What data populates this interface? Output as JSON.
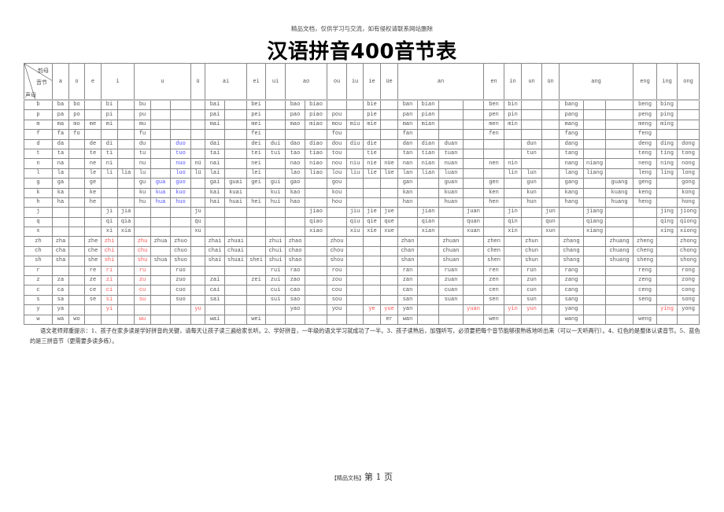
{
  "notice": "精品文档，仅供学习与交流，如有侵权请联系网站删除",
  "title": "汉语拼音400音节表",
  "corner": {
    "finals": "韵母",
    "syllable": "音节",
    "initials": "声母"
  },
  "colors": {
    "whole_reading": "#ff5555",
    "three_spelling": "#5555ff"
  },
  "header_groups": [
    {
      "label": "a",
      "span": 1
    },
    {
      "label": "o",
      "span": 1
    },
    {
      "label": "e",
      "span": 1
    },
    {
      "label": "i",
      "span": 2
    },
    {
      "label": "u",
      "span": 3
    },
    {
      "label": "ü",
      "span": 1
    },
    {
      "label": "ai",
      "span": 2
    },
    {
      "label": "ei",
      "span": 1
    },
    {
      "label": "ui",
      "span": 1
    },
    {
      "label": "ao",
      "span": 2
    },
    {
      "label": "ou",
      "span": 1
    },
    {
      "label": "iu",
      "span": 1
    },
    {
      "label": "ie",
      "span": 1
    },
    {
      "label": "üe",
      "span": 1
    },
    {
      "label": "an",
      "span": 4
    },
    {
      "label": "en",
      "span": 1
    },
    {
      "label": "in",
      "span": 1
    },
    {
      "label": "un",
      "span": 1
    },
    {
      "label": "ün",
      "span": 1
    },
    {
      "label": "ang",
      "span": 3
    },
    {
      "label": "eng",
      "span": 1
    },
    {
      "label": "ing",
      "span": 1
    },
    {
      "label": "ong",
      "span": 1
    }
  ],
  "rows": [
    {
      "initial": "b",
      "cells": [
        "ba",
        "bo",
        "",
        "bi",
        "",
        "bu",
        "",
        "",
        "",
        "bai",
        "",
        "bei",
        "",
        "bao",
        "biao",
        "",
        "",
        "bie",
        "",
        "ban",
        "bian",
        "",
        "",
        "ben",
        "bin",
        "",
        "",
        "bang",
        "",
        "",
        "beng",
        "bing",
        ""
      ]
    },
    {
      "initial": "p",
      "cells": [
        "pa",
        "po",
        "",
        "pi",
        "",
        "pu",
        "",
        "",
        "",
        "pai",
        "",
        "pei",
        "",
        "pao",
        "piao",
        "pou",
        "",
        "pie",
        "",
        "pan",
        "pian",
        "",
        "",
        "pen",
        "pin",
        "",
        "",
        "pang",
        "",
        "",
        "peng",
        "ping",
        ""
      ]
    },
    {
      "initial": "m",
      "cells": [
        "ma",
        "mo",
        "me",
        "mi",
        "",
        "mu",
        "",
        "",
        "",
        "mai",
        "",
        "mei",
        "",
        "mao",
        "miao",
        "mou",
        "miu",
        "mie",
        "",
        "man",
        "mian",
        "",
        "",
        "men",
        "min",
        "",
        "",
        "mang",
        "",
        "",
        "meng",
        "ming",
        ""
      ]
    },
    {
      "initial": "f",
      "cells": [
        "fa",
        "fo",
        "",
        "",
        "",
        "fu",
        "",
        "",
        "",
        "",
        "",
        "fei",
        "",
        "",
        "",
        "fou",
        "",
        "",
        "",
        "fan",
        "",
        "",
        "",
        "fen",
        "",
        "",
        "",
        "fang",
        "",
        "",
        "feng",
        "",
        ""
      ]
    },
    {
      "initial": "d",
      "cells": [
        "da",
        "",
        "de",
        "di",
        "",
        "du",
        "",
        "duo",
        "",
        "dai",
        "",
        "dei",
        "dui",
        "dao",
        "diao",
        "dou",
        "diu",
        "die",
        "",
        "dan",
        "dian",
        "duan",
        "",
        "",
        "",
        "dun",
        "",
        "dang",
        "",
        "",
        "deng",
        "ding",
        "dong"
      ]
    },
    {
      "initial": "t",
      "cells": [
        "ta",
        "",
        "te",
        "ti",
        "",
        "tu",
        "",
        "tuo",
        "",
        "tai",
        "",
        "tei",
        "tui",
        "tao",
        "tiao",
        "tou",
        "",
        "tie",
        "",
        "tan",
        "tian",
        "tuan",
        "",
        "",
        "",
        "tun",
        "",
        "tang",
        "",
        "",
        "teng",
        "ting",
        "tong"
      ]
    },
    {
      "initial": "n",
      "cells": [
        "na",
        "",
        "ne",
        "ni",
        "",
        "nu",
        "",
        "nuo",
        "nü",
        "nai",
        "",
        "nei",
        "",
        "nao",
        "niao",
        "nou",
        "niu",
        "nie",
        "nüe",
        "nan",
        "nian",
        "nuan",
        "",
        "nen",
        "nin",
        "",
        "",
        "nang",
        "niang",
        "",
        "neng",
        "ning",
        "nong"
      ]
    },
    {
      "initial": "l",
      "cells": [
        "la",
        "",
        "le",
        "li",
        "lia",
        "lu",
        "",
        "luo",
        "lü",
        "lai",
        "",
        "lei",
        "",
        "lao",
        "liao",
        "lou",
        "liu",
        "lie",
        "lüe",
        "lan",
        "lian",
        "luan",
        "",
        "",
        "lin",
        "lun",
        "",
        "lang",
        "liang",
        "",
        "leng",
        "ling",
        "long"
      ]
    },
    {
      "initial": "g",
      "cells": [
        "ga",
        "",
        "ge",
        "",
        "",
        "gu",
        "gua",
        "guo",
        "",
        "gai",
        "guai",
        "gei",
        "gui",
        "gao",
        "",
        "gou",
        "",
        "",
        "",
        "gan",
        "",
        "guan",
        "",
        "gen",
        "",
        "gun",
        "",
        "gang",
        "",
        "guang",
        "geng",
        "",
        "gong"
      ]
    },
    {
      "initial": "k",
      "cells": [
        "ka",
        "",
        "ke",
        "",
        "",
        "ku",
        "kua",
        "kuo",
        "",
        "kai",
        "kuai",
        "",
        "kui",
        "kao",
        "",
        "kou",
        "",
        "",
        "",
        "kan",
        "",
        "kuan",
        "",
        "ken",
        "",
        "kun",
        "",
        "kang",
        "",
        "kuang",
        "keng",
        "",
        "kong"
      ]
    },
    {
      "initial": "h",
      "cells": [
        "ha",
        "",
        "he",
        "",
        "",
        "hu",
        "hua",
        "huo",
        "",
        "hai",
        "huai",
        "hei",
        "hui",
        "hao",
        "",
        "hou",
        "",
        "",
        "",
        "han",
        "",
        "huan",
        "",
        "hen",
        "",
        "hun",
        "",
        "hang",
        "",
        "huang",
        "heng",
        "",
        "hong"
      ]
    },
    {
      "initial": "j",
      "cells": [
        "",
        "",
        "",
        "ji",
        "jia",
        "",
        "",
        "",
        "ju",
        "",
        "",
        "",
        "",
        "",
        "jiao",
        "",
        "jiu",
        "jie",
        "jue",
        "",
        "jian",
        "",
        "juan",
        "",
        "jin",
        "",
        "jun",
        "",
        "jiang",
        "",
        "",
        "jing",
        "jiong"
      ]
    },
    {
      "initial": "q",
      "cells": [
        "",
        "",
        "",
        "qi",
        "qia",
        "",
        "",
        "",
        "qu",
        "",
        "",
        "",
        "",
        "",
        "qiao",
        "",
        "qiu",
        "qie",
        "que",
        "",
        "qian",
        "",
        "quan",
        "",
        "qin",
        "",
        "qun",
        "",
        "qiang",
        "",
        "",
        "qing",
        "qiong"
      ]
    },
    {
      "initial": "x",
      "cells": [
        "",
        "",
        "",
        "xi",
        "xia",
        "",
        "",
        "",
        "xu",
        "",
        "",
        "",
        "",
        "",
        "xiao",
        "",
        "xiu",
        "xie",
        "xue",
        "",
        "xian",
        "",
        "xuan",
        "",
        "xin",
        "",
        "xun",
        "",
        "xiang",
        "",
        "",
        "xing",
        "xiong"
      ]
    },
    {
      "initial": "zh",
      "cells": [
        "zha",
        "",
        "zhe",
        "zhi",
        "",
        "zhu",
        "zhua",
        "zhuo",
        "",
        "zhai",
        "zhuai",
        "",
        "zhui",
        "zhao",
        "",
        "zhou",
        "",
        "",
        "",
        "zhan",
        "",
        "zhuan",
        "",
        "zhen",
        "",
        "zhun",
        "",
        "zhang",
        "",
        "zhuang",
        "zheng",
        "",
        "zhong"
      ]
    },
    {
      "initial": "ch",
      "cells": [
        "cha",
        "",
        "che",
        "chi",
        "",
        "chu",
        "",
        "chuo",
        "",
        "chai",
        "chuai",
        "",
        "chui",
        "chao",
        "",
        "chou",
        "",
        "",
        "",
        "chan",
        "",
        "chuan",
        "",
        "chen",
        "",
        "chun",
        "",
        "chang",
        "",
        "chuang",
        "cheng",
        "",
        "chong"
      ]
    },
    {
      "initial": "sh",
      "cells": [
        "sha",
        "",
        "she",
        "shi",
        "",
        "shu",
        "shua",
        "shuo",
        "",
        "shai",
        "shuai",
        "shei",
        "shui",
        "shao",
        "",
        "shou",
        "",
        "",
        "",
        "shan",
        "",
        "shuan",
        "",
        "shen",
        "",
        "shun",
        "",
        "shang",
        "",
        "shuang",
        "sheng",
        "",
        "shong"
      ]
    },
    {
      "initial": "r",
      "cells": [
        "",
        "",
        "re",
        "ri",
        "",
        "ru",
        "",
        "ruo",
        "",
        "",
        "",
        "",
        "rui",
        "rao",
        "",
        "rou",
        "",
        "",
        "",
        "ran",
        "",
        "ruan",
        "",
        "ren",
        "",
        "run",
        "",
        "rang",
        "",
        "",
        "reng",
        "",
        "rong"
      ]
    },
    {
      "initial": "z",
      "cells": [
        "za",
        "",
        "ze",
        "zi",
        "",
        "zu",
        "",
        "zuo",
        "",
        "zai",
        "",
        "zei",
        "zui",
        "zao",
        "",
        "zou",
        "",
        "",
        "",
        "zan",
        "",
        "zuan",
        "",
        "zen",
        "",
        "zun",
        "",
        "zang",
        "",
        "",
        "zeng",
        "",
        "zong"
      ]
    },
    {
      "initial": "c",
      "cells": [
        "ca",
        "",
        "ce",
        "ci",
        "",
        "cu",
        "",
        "cuo",
        "",
        "cai",
        "",
        "",
        "cui",
        "cao",
        "",
        "cou",
        "",
        "",
        "",
        "can",
        "",
        "cuan",
        "",
        "cen",
        "",
        "cun",
        "",
        "cang",
        "",
        "",
        "ceng",
        "",
        "cong"
      ]
    },
    {
      "initial": "s",
      "cells": [
        "sa",
        "",
        "se",
        "si",
        "",
        "su",
        "",
        "suo",
        "",
        "sai",
        "",
        "",
        "sui",
        "sao",
        "",
        "sou",
        "",
        "",
        "",
        "san",
        "",
        "suan",
        "",
        "sen",
        "",
        "sun",
        "",
        "sang",
        "",
        "",
        "seng",
        "",
        "song"
      ]
    },
    {
      "initial": "y",
      "cells": [
        "ya",
        "",
        "",
        "yi",
        "",
        "",
        "",
        "",
        "yu",
        "",
        "",
        "",
        "",
        "yao",
        "",
        "you",
        "",
        "ye",
        "yue",
        "yan",
        "",
        "",
        "yuan",
        "",
        "yin",
        "yun",
        "",
        "yang",
        "",
        "",
        "",
        "ying",
        "yong"
      ]
    },
    {
      "initial": "w",
      "cells": [
        "wa",
        "wo",
        "",
        "",
        "",
        "wu",
        "",
        "",
        "",
        "wai",
        "",
        "wei",
        "",
        "",
        "",
        "",
        "",
        "",
        "er",
        "wan",
        "",
        "",
        "",
        "wen",
        "",
        "",
        "",
        "wang",
        "",
        "",
        "weng",
        "",
        ""
      ]
    }
  ],
  "whole_reading_syllables": [
    "zhi",
    "chi",
    "shi",
    "ri",
    "zi",
    "ci",
    "si",
    "yi",
    "wu",
    "yu",
    "ye",
    "yue",
    "yuan",
    "yin",
    "yun",
    "ying",
    "zhu",
    "chu",
    "shu",
    "ru",
    "zu",
    "cu",
    "su"
  ],
  "three_spelling_syllables": [
    "duo",
    "tuo",
    "nuo",
    "luo",
    "gua",
    "guo",
    "kua",
    "kuo",
    "hua",
    "huo"
  ],
  "note": "语文老师郑重提示：1、孩子在家多读是学好拼音的关键，请每天让孩子读三遍给家长听。2、学好拼音，一年级的语文学习就成功了一半。3、孩子读熟后，加强听写，必须要把每个音节能够很熟练地听出来（可以一天听两行）。4、红色的是整体认读音节。5、蓝色的是三拼音节（更需要多读多练）。",
  "footer": {
    "tag": "【精品文档】",
    "page": "第 1 页"
  }
}
